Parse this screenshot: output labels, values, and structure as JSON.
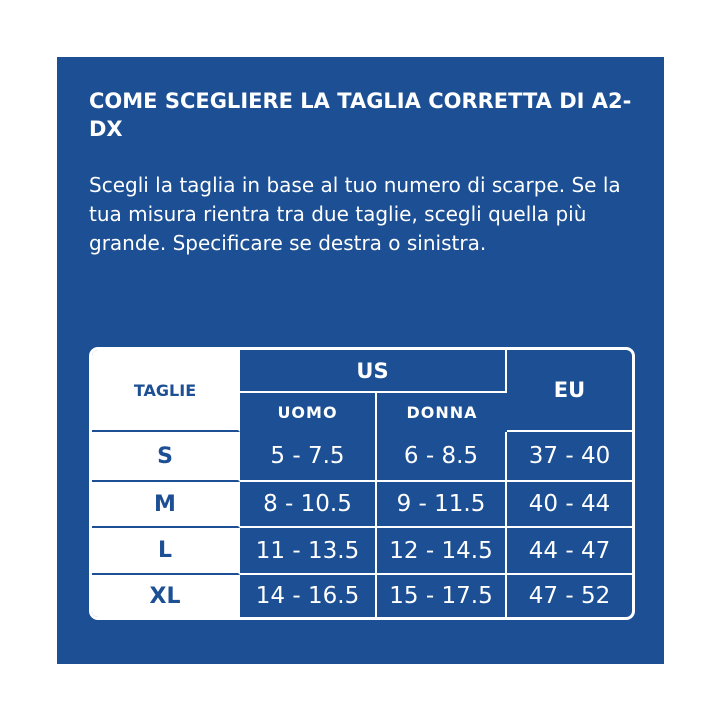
{
  "header": {
    "title": "COME SCEGLIERE LA TAGLIA CORRETTA DI A2-DX",
    "description": "Scegli la taglia in base al tuo numero di scarpe. Se la tua misura rientra tra due taglie, scegli quella più grande. Specificare se destra o sinistra."
  },
  "table": {
    "columns": {
      "size": "TAGLIE",
      "us": "US",
      "us_men": "UOMO",
      "us_women": "DONNA",
      "eu": "EU"
    },
    "rows": [
      [
        "S",
        "5 - 7.5",
        "6 - 8.5",
        "37 - 40"
      ],
      [
        "M",
        "8 - 10.5",
        "9 - 11.5",
        "40 - 44"
      ],
      [
        "L",
        "11 - 13.5",
        "12 - 14.5",
        "44 - 47"
      ],
      [
        "XL",
        "14 - 16.5",
        "15 - 17.5",
        "47 - 52"
      ]
    ]
  }
}
